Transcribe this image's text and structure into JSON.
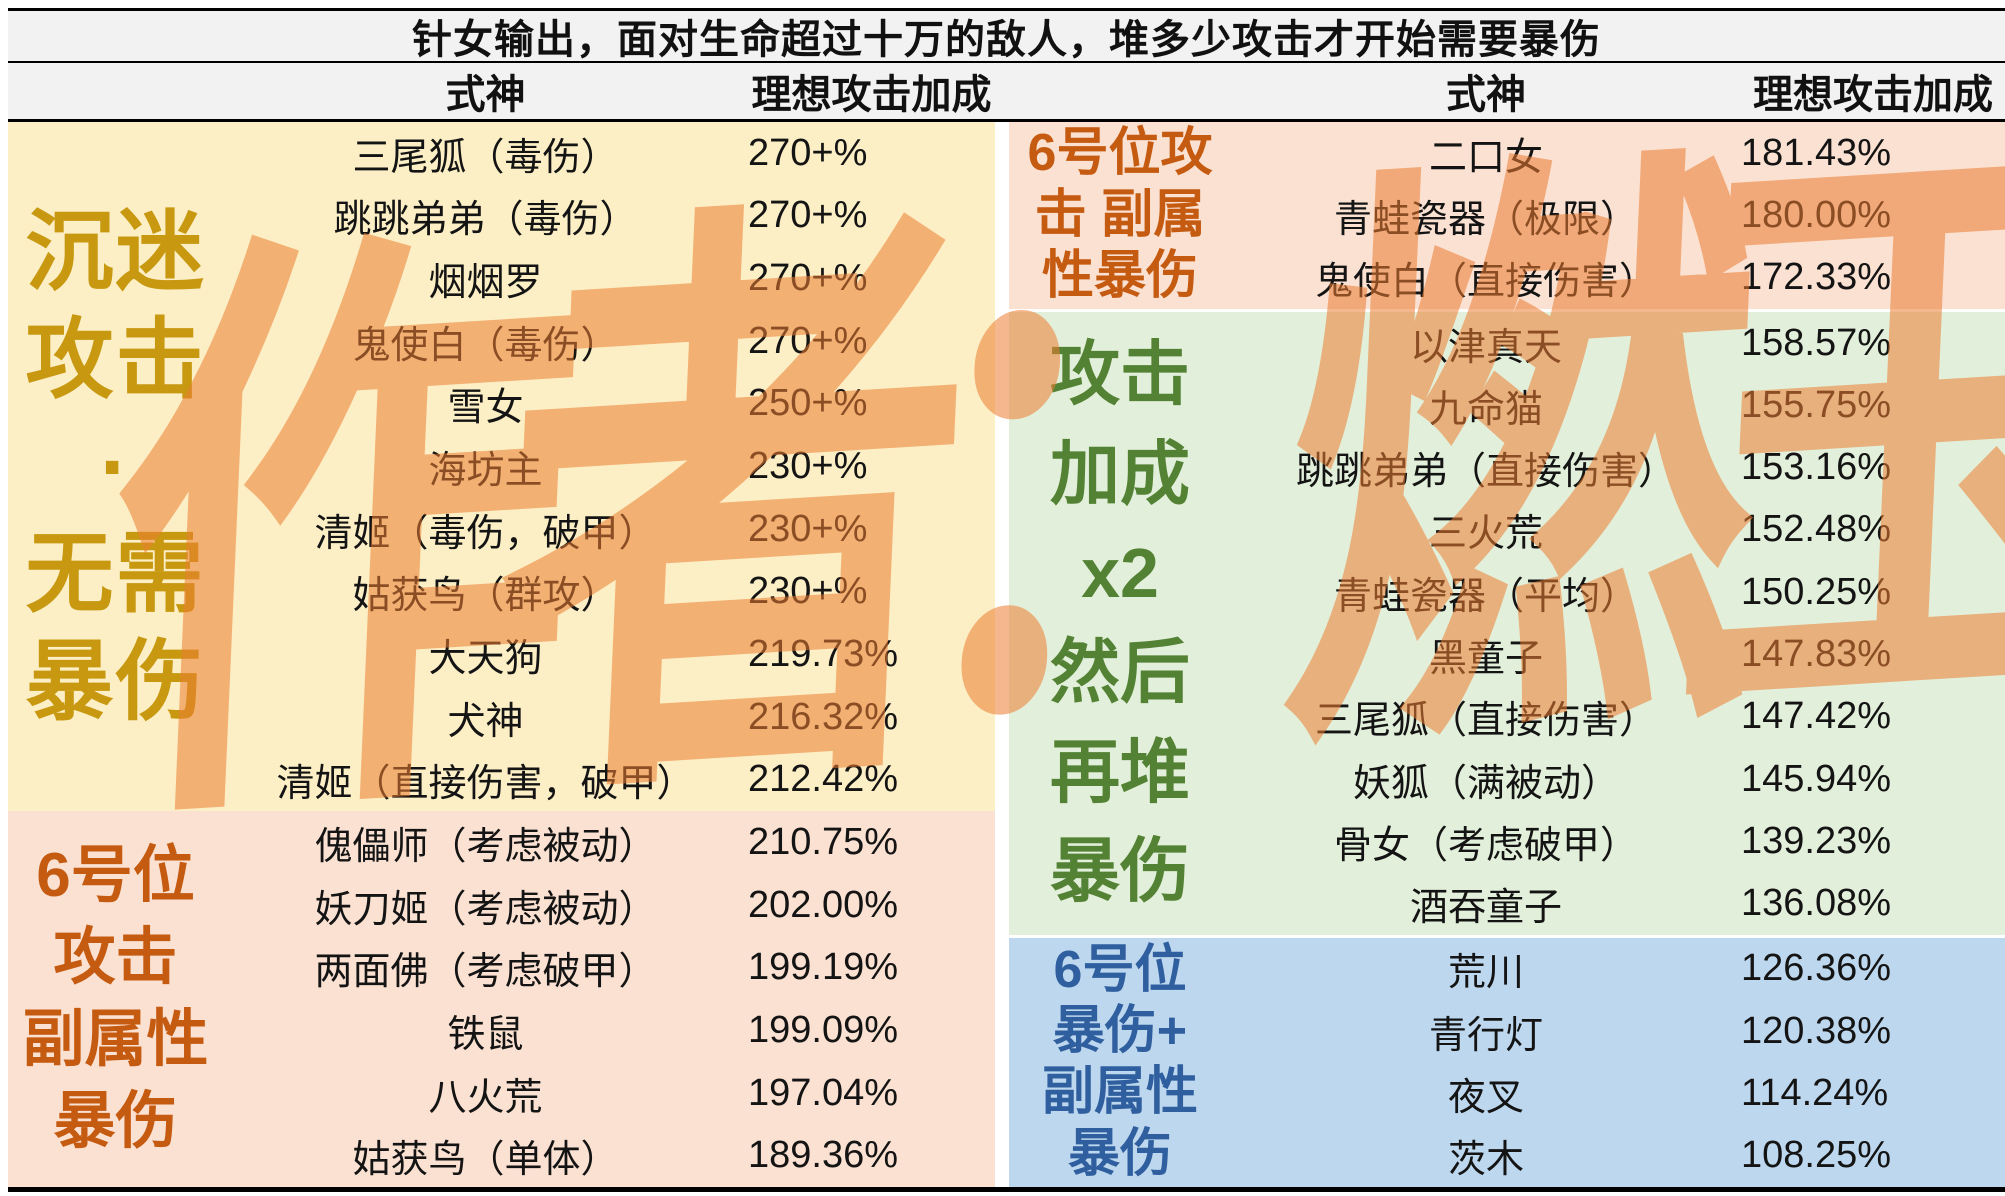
{
  "title": "针女输出，面对生命超过十万的敌人，堆多少攻击才开始需要暴伤",
  "columns": {
    "shikigami": "式神",
    "ideal_attack_bonus": "理想攻击加成"
  },
  "watermark": {
    "text": "作者：燃玉",
    "color": "#ED7D31"
  },
  "colors": {
    "title_bg": "#F2F2F2",
    "yellow_bg": "#FCEFC6",
    "salmon_bg": "#FAE1D2",
    "green_bg": "#E2EFDA",
    "blue_bg": "#BDD7EE",
    "gold_label": "#C79810",
    "orange_label": "#C55A11",
    "green_label": "#548235",
    "blue_label": "#2F5F9E"
  },
  "left": {
    "sections": [
      {
        "id": "addicted-attack-no-crit",
        "variant": "gold",
        "bg": "#FCEFC6",
        "label_color": "#C79810",
        "label_lines": "沉迷\n攻击\n·\n无需\n暴伤",
        "label_text": "沉迷攻击·无需暴伤",
        "rows": [
          {
            "name": "三尾狐（毒伤）",
            "value": "270+%"
          },
          {
            "name": "跳跳弟弟（毒伤）",
            "value": "270+%"
          },
          {
            "name": "烟烟罗",
            "value": "270+%"
          },
          {
            "name": "鬼使白（毒伤）",
            "value": "270+%"
          },
          {
            "name": "雪女",
            "value": "250+%"
          },
          {
            "name": "海坊主",
            "value": "230+%"
          },
          {
            "name": "清姬（毒伤，破甲）",
            "value": "230+%"
          },
          {
            "name": "姑获鸟（群攻）",
            "value": "230+%"
          },
          {
            "name": "大天狗",
            "value": "219.73%"
          },
          {
            "name": "犬神",
            "value": "216.32%"
          },
          {
            "name": "清姬（直接伤害，破甲）",
            "value": "212.42%"
          }
        ]
      },
      {
        "id": "slot6-attack-sub-crit-left",
        "variant": "orange",
        "bg": "#FAE1D2",
        "label_color": "#C55A11",
        "label_lines": "6号位\n攻击\n副属性\n暴伤",
        "label_text": "6号位攻击副属性暴伤",
        "rows": [
          {
            "name": "傀儡师（考虑被动）",
            "value": "210.75%"
          },
          {
            "name": "妖刀姬（考虑被动）",
            "value": "202.00%"
          },
          {
            "name": "两面佛（考虑破甲）",
            "value": "199.19%"
          },
          {
            "name": "铁鼠",
            "value": "199.09%"
          },
          {
            "name": "八火荒",
            "value": "197.04%"
          },
          {
            "name": "姑获鸟（单体）",
            "value": "189.36%"
          }
        ]
      }
    ]
  },
  "right": {
    "sections": [
      {
        "id": "slot6-attack-sub-crit-right",
        "variant": "salmon",
        "bg": "#FAE1D2",
        "label_color": "#C55A11",
        "label_lines": "6号位攻\n击 副属\n性暴伤",
        "label_text": "6号位攻击 副属性暴伤",
        "rows": [
          {
            "name": "二口女",
            "value": "181.43%"
          },
          {
            "name": "青蛙瓷器（极限）",
            "value": "180.00%"
          },
          {
            "name": "鬼使白（直接伤害）",
            "value": "172.33%"
          }
        ]
      },
      {
        "id": "attack-bonus-x2-then-crit",
        "variant": "green",
        "bg": "#E2EFDA",
        "label_color": "#548235",
        "label_lines": "攻击\n加成\nx2\n然后\n再堆\n暴伤",
        "label_text": "攻击加成x2然后再堆暴伤",
        "rows": [
          {
            "name": "以津真天",
            "value": "158.57%"
          },
          {
            "name": "九命猫",
            "value": "155.75%"
          },
          {
            "name": "跳跳弟弟（直接伤害）",
            "value": "153.16%"
          },
          {
            "name": "三火荒",
            "value": "152.48%"
          },
          {
            "name": "青蛙瓷器（平均）",
            "value": "150.25%"
          },
          {
            "name": "黑童子",
            "value": "147.83%"
          },
          {
            "name": "三尾狐（直接伤害）",
            "value": "147.42%"
          },
          {
            "name": "妖狐（满被动）",
            "value": "145.94%"
          },
          {
            "name": "骨女（考虑破甲）",
            "value": "139.23%"
          },
          {
            "name": "酒吞童子",
            "value": "136.08%"
          }
        ]
      },
      {
        "id": "slot6-crit-plus-sub-crit",
        "variant": "blue",
        "bg": "#BDD7EE",
        "label_color": "#2F5F9E",
        "label_lines": "6号位\n暴伤+\n副属性\n暴伤",
        "label_text": "6号位暴伤+副属性暴伤",
        "rows": [
          {
            "name": "荒川",
            "value": "126.36%"
          },
          {
            "name": "青行灯",
            "value": "120.38%"
          },
          {
            "name": "夜叉",
            "value": "114.24%"
          },
          {
            "name": "茨木",
            "value": "108.25%"
          }
        ]
      }
    ]
  }
}
